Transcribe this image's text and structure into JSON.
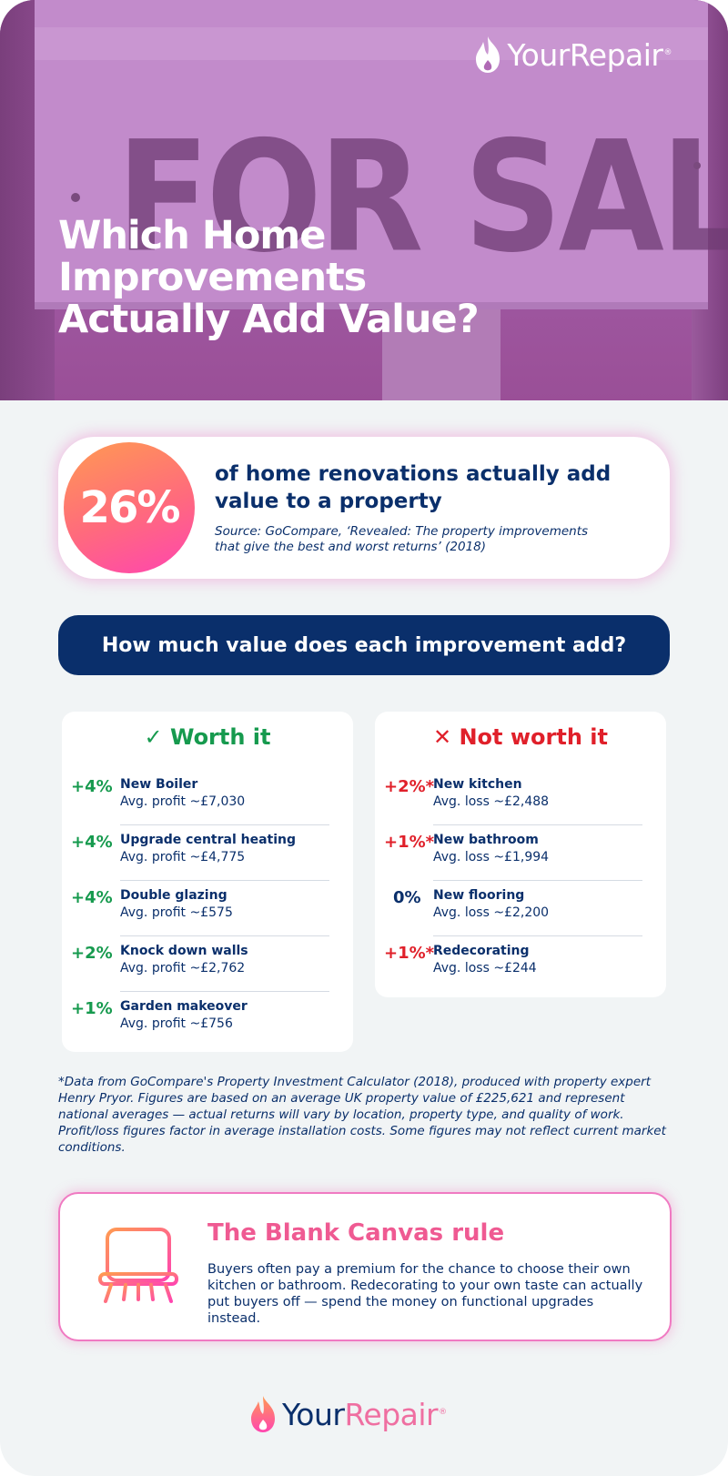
{
  "brand": {
    "your": "Your",
    "repair": "Repair",
    "reg": "®"
  },
  "hero": {
    "sign_text": "FOR SALE",
    "title": "Which Home Improvements Actually Add Value?"
  },
  "stat": {
    "value": "26%",
    "text": "of home renovations actually add value to a property",
    "source": "Source: GoCompare, ‘Revealed: The property improvements that give the best and worst returns’ (2018)"
  },
  "banner": {
    "text": "How much value does each improvement add?"
  },
  "worth_it": {
    "heading": "✓ Worth it",
    "items": [
      {
        "pct": "+4%",
        "name": "New Boiler",
        "detail": "Avg. profit ~£7,030"
      },
      {
        "pct": "+4%",
        "name": "Upgrade central heating",
        "detail": "Avg. profit ~£4,775"
      },
      {
        "pct": "+4%",
        "name": "Double glazing",
        "detail": "Avg. profit ~£575"
      },
      {
        "pct": "+2%",
        "name": "Knock down walls",
        "detail": "Avg. profit ~£2,762"
      },
      {
        "pct": "+1%",
        "name": "Garden makeover",
        "detail": "Avg. profit ~£756"
      }
    ]
  },
  "not_worth_it": {
    "heading": "✕ Not worth it",
    "items": [
      {
        "pct": "+2%*",
        "name": "New kitchen",
        "detail": "Avg. loss ~£2,488"
      },
      {
        "pct": "+1%*",
        "name": "New bathroom",
        "detail": "Avg. loss ~£1,994"
      },
      {
        "pct": "0%",
        "name": "New flooring",
        "detail": "Avg. loss ~£2,200"
      },
      {
        "pct": "+1%*",
        "name": "Redecorating",
        "detail": "Avg. loss ~£244"
      }
    ]
  },
  "footnote": "*Data from GoCompare's Property Investment Calculator (2018), produced with property expert Henry Pryor. Figures are based on an average UK property value of £225,621 and represent national averages — actual returns will vary by location, property type, and quality of work. Profit/loss figures factor in average installation costs. Some figures may not reflect current market conditions.",
  "tip": {
    "icon": "canvas-chair-icon",
    "title": "The Blank Canvas rule",
    "body": "Buyers often pay a premium for the chance to choose their own kitchen or bathroom. Redecorating to your own taste can actually put buyers off — spend the money on functional upgrades instead."
  },
  "colors": {
    "navy": "#0a2f6b",
    "green": "#169a4e",
    "red": "#e0202a",
    "pink": "#ef5a92",
    "orange": "#ff9a52"
  }
}
